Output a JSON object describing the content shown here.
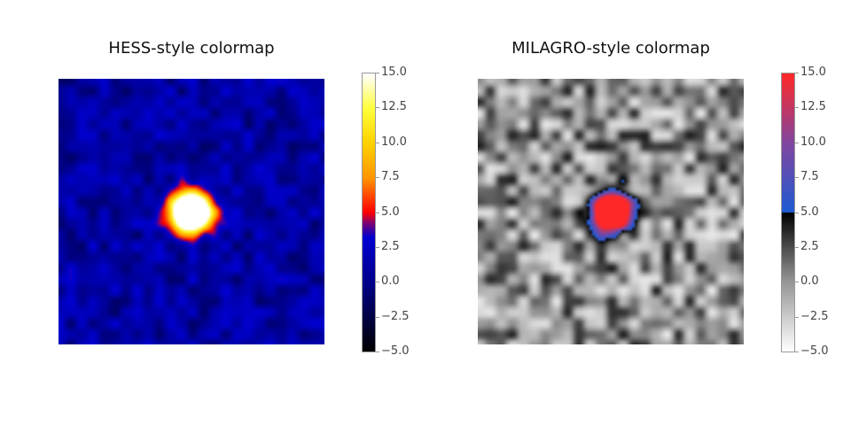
{
  "chart_data": [
    {
      "type": "heatmap",
      "title": "HESS-style colormap",
      "colormap": "hess",
      "colorbar": {
        "range": [
          -5.0,
          15.0
        ],
        "ticks": [
          "15.0",
          "12.5",
          "10.0",
          "7.5",
          "5.0",
          "2.5",
          "0.0",
          "−2.5",
          "−5.0"
        ],
        "tick_values": [
          15.0,
          12.5,
          10.0,
          7.5,
          5.0,
          2.5,
          0.0,
          -2.5,
          -5.0
        ],
        "colors": {
          "low": "#000000",
          "mid": "#0000cc",
          "threshold": "#ff0000",
          "high": "#ffffff"
        }
      },
      "source": {
        "x_frac": 0.5,
        "y_frac": 0.5,
        "peak": 15.0
      },
      "axes": "off",
      "grid": false
    },
    {
      "type": "heatmap",
      "title": "MILAGRO-style colormap",
      "colormap": "milagro",
      "colorbar": {
        "range": [
          -5.0,
          15.0
        ],
        "ticks": [
          "15.0",
          "12.5",
          "10.0",
          "7.5",
          "5.0",
          "2.5",
          "0.0",
          "−2.5",
          "−5.0"
        ],
        "tick_values": [
          15.0,
          12.5,
          10.0,
          7.5,
          5.0,
          2.5,
          0.0,
          -2.5,
          -5.0
        ],
        "colors": {
          "low": "#ffffff",
          "threshold": "#000000",
          "mid": "#1f5bd6",
          "high": "#ff2a2a"
        }
      },
      "source": {
        "x_frac": 0.5,
        "y_frac": 0.5,
        "peak": 15.0
      },
      "axes": "off",
      "grid": false
    }
  ]
}
